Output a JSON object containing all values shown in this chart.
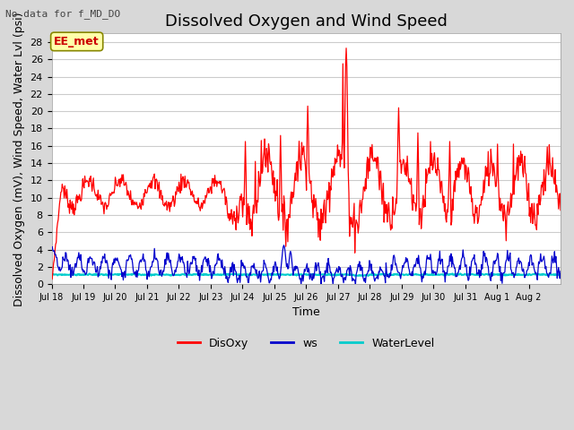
{
  "title": "Dissolved Oxygen and Wind Speed",
  "subtitle": "No data for f_MD_DO",
  "ylabel": "Dissolved Oxygen (mV), Wind Speed, Water Lvl (psi)",
  "xlabel": "Time",
  "annotation": "EE_met",
  "ylim": [
    0,
    29
  ],
  "yticks": [
    0,
    2,
    4,
    6,
    8,
    10,
    12,
    14,
    16,
    18,
    20,
    22,
    24,
    26,
    28
  ],
  "xtick_labels": [
    "Jul 18",
    "Jul 19",
    "Jul 20",
    "Jul 21",
    "Jul 22",
    "Jul 23",
    "Jul 24",
    "Jul 25",
    "Jul 26",
    "Jul 27",
    "Jul 28",
    "Jul 29",
    "Jul 30",
    "Jul 31",
    "Aug 1",
    "Aug 2"
  ],
  "fig_bg_color": "#d8d8d8",
  "plot_bg_color": "#ffffff",
  "disoxy_color": "#ff0000",
  "ws_color": "#0000cc",
  "waterlevel_color": "#00cccc",
  "grid_color": "#cccccc",
  "legend_labels": [
    "DisOxy",
    "ws",
    "WaterLevel"
  ],
  "title_fontsize": 13,
  "axis_fontsize": 9,
  "tick_fontsize": 8,
  "annot_facecolor": "#ffffaa",
  "annot_edgecolor": "#888800",
  "annot_textcolor": "#cc0000"
}
